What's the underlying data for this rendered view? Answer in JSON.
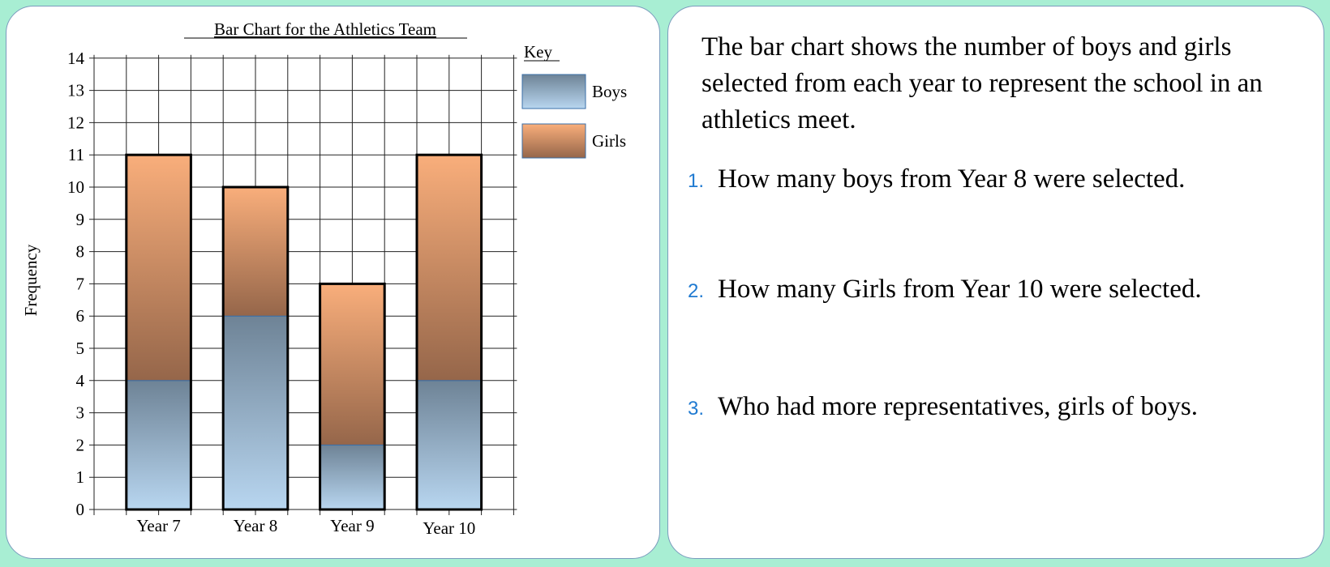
{
  "chart_data": {
    "type": "bar",
    "stacked": true,
    "title": "Bar Chart for the Athletics Team",
    "xlabel": "",
    "ylabel": "Frequency",
    "ylim": [
      0,
      14
    ],
    "yticks": [
      "0",
      "1",
      "2",
      "3",
      "4",
      "5",
      "6",
      "7",
      "8",
      "9",
      "10",
      "11",
      "12",
      "13",
      "14"
    ],
    "grid": true,
    "legend_title": "Key",
    "legend_position": "right",
    "categories": [
      "Year 7",
      "Year 8",
      "Year 9",
      "Year 10"
    ],
    "series": [
      {
        "name": "Boys",
        "values": [
          4,
          6,
          2,
          4
        ],
        "color_top": "#6e8396",
        "color_bottom": "#b8d6f0"
      },
      {
        "name": "Girls",
        "values": [
          7,
          4,
          5,
          7
        ],
        "color_top": "#f9ae7b",
        "color_bottom": "#95664a"
      }
    ]
  },
  "text": {
    "intro": "The bar chart shows the number of boys and girls selected from each year to represent the school in an athletics meet.",
    "questions": [
      {
        "num": "1.",
        "text": "How many boys from Year 8 were selected."
      },
      {
        "num": "2.",
        "text": "How many Girls from Year 10 were selected."
      },
      {
        "num": "3.",
        "text": "Who had more representatives, girls of boys."
      }
    ]
  }
}
